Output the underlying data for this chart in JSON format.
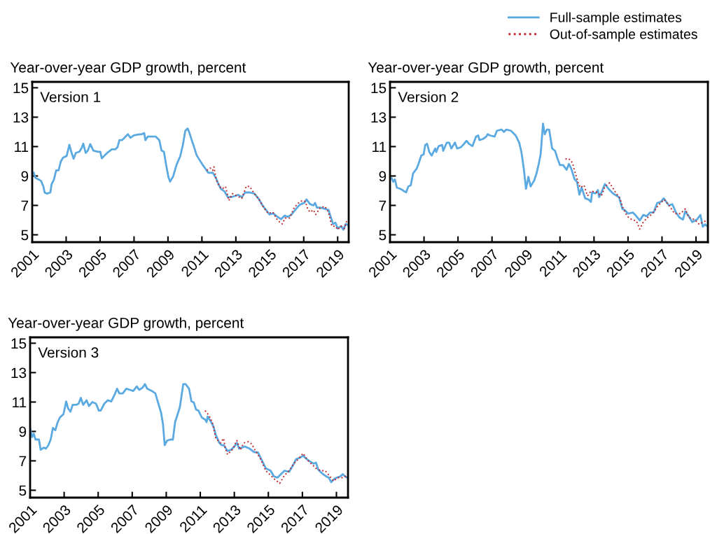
{
  "chart_data": [
    {
      "type": "line",
      "title": "Version 1",
      "ylabel": "Year-over-year GDP growth, percent",
      "xlim": [
        2001,
        2019.65
      ],
      "ylim": [
        4.5,
        15.4
      ],
      "xticks": [
        2001,
        2003,
        2005,
        2007,
        2009,
        2011,
        2013,
        2015,
        2017,
        2019
      ],
      "yticks": [
        5,
        7,
        9,
        11,
        13,
        15
      ],
      "legend": "top right",
      "grid": false,
      "series": [
        {
          "name": "Full-sample estimates",
          "color": "#5aa9e0",
          "line_style": "solid",
          "x": [
            2001.09,
            2001.19,
            2001.52,
            2001.66,
            2001.73,
            2001.87,
            2002.07,
            2002.14,
            2002.28,
            2002.41,
            2002.55,
            2002.69,
            2002.82,
            2003.03,
            2003.19,
            2003.3,
            2003.44,
            2003.57,
            2003.78,
            2003.91,
            2004.01,
            2004.15,
            2004.28,
            2004.42,
            2004.6,
            2004.87,
            2005.01,
            2005.1,
            2005.28,
            2005.42,
            2005.69,
            2005.9,
            2006.03,
            2006.14,
            2006.3,
            2006.44,
            2006.64,
            2006.79,
            2006.99,
            2007.33,
            2007.46,
            2007.6,
            2007.67,
            2007.81,
            2008.08,
            2008.28,
            2008.49,
            2008.62,
            2008.76,
            2008.9,
            2009.03,
            2009.13,
            2009.31,
            2009.51,
            2009.72,
            2009.88,
            2010.02,
            2010.16,
            2010.27,
            2010.4,
            2010.54,
            2010.69,
            2010.82,
            2011.03,
            2011.23,
            2011.37,
            2011.64,
            2011.84,
            2011.98,
            2012.12,
            2012.32,
            2012.53,
            2012.73,
            2012.94,
            2013.14,
            2013.35,
            2013.55,
            2013.82,
            2014.09,
            2014.37,
            2014.57,
            2014.78,
            2014.98,
            2015.19,
            2015.46,
            2015.66,
            2015.87,
            2016.07,
            2016.28,
            2016.55,
            2016.76,
            2017.03,
            2017.16,
            2017.37,
            2017.57,
            2017.67,
            2017.78,
            2017.98,
            2018.25,
            2018.46,
            2018.59,
            2018.73,
            2018.87,
            2019.0,
            2019.2,
            2019.34,
            2019.48,
            2019.62
          ],
          "values": [
            9.22,
            8.88,
            8.67,
            8.28,
            7.88,
            7.8,
            7.88,
            8.43,
            8.75,
            9.38,
            9.38,
            10.0,
            10.25,
            10.36,
            11.12,
            10.65,
            10.17,
            10.57,
            10.65,
            10.89,
            11.2,
            10.57,
            10.73,
            11.17,
            10.73,
            10.65,
            10.65,
            10.2,
            10.41,
            10.57,
            10.81,
            10.81,
            10.97,
            11.44,
            11.44,
            11.6,
            11.84,
            11.6,
            11.76,
            11.84,
            11.84,
            11.92,
            11.44,
            11.68,
            11.68,
            11.68,
            11.44,
            10.73,
            10.65,
            9.7,
            8.91,
            8.62,
            8.99,
            9.78,
            10.33,
            11.12,
            12.07,
            12.23,
            11.92,
            11.44,
            10.97,
            10.41,
            10.17,
            9.78,
            9.46,
            9.22,
            9.22,
            8.83,
            8.43,
            8.12,
            7.96,
            7.56,
            7.56,
            7.64,
            7.72,
            7.56,
            7.88,
            7.88,
            7.8,
            7.41,
            7.0,
            6.69,
            6.38,
            6.46,
            6.22,
            6.06,
            6.3,
            6.22,
            6.38,
            6.77,
            7.04,
            7.17,
            7.41,
            7.09,
            7.0,
            7.17,
            6.85,
            6.85,
            6.77,
            6.69,
            6.22,
            5.74,
            5.82,
            5.43,
            5.59,
            5.35,
            5.74,
            5.66
          ]
        },
        {
          "name": "Out-of-sample estimates",
          "color": "#c0272d",
          "line_style": "dotted",
          "x": [
            2011.29,
            2011.5,
            2011.64,
            2011.71,
            2011.84,
            2012.05,
            2012.19,
            2012.39,
            2012.59,
            2012.8,
            2013.07,
            2013.35,
            2013.62,
            2013.82,
            2014.09,
            2014.37,
            2014.64,
            2014.91,
            2015.19,
            2015.46,
            2015.73,
            2015.9,
            2016.17,
            2016.44,
            2016.76,
            2016.96,
            2017.1,
            2017.23,
            2017.37,
            2017.57,
            2017.71,
            2017.98,
            2018.25,
            2018.46,
            2018.66,
            2018.87,
            2019.0,
            2019.2,
            2019.4,
            2019.54
          ],
          "values": [
            9.38,
            9.54,
            9.38,
            9.62,
            8.75,
            8.28,
            8.12,
            8.28,
            7.33,
            7.8,
            7.64,
            7.48,
            8.31,
            8.28,
            7.8,
            7.41,
            6.85,
            6.46,
            6.54,
            5.98,
            5.74,
            6.14,
            6.14,
            6.85,
            7.25,
            7.33,
            7.25,
            6.77,
            6.54,
            6.69,
            6.38,
            6.85,
            6.93,
            6.54,
            5.59,
            5.59,
            5.35,
            5.59,
            5.43,
            5.98
          ]
        }
      ]
    },
    {
      "type": "line",
      "title": "Version 2",
      "ylabel": "Year-over-year GDP growth, percent",
      "xlim": [
        2001,
        2019.7
      ],
      "ylim": [
        4.5,
        15.4
      ],
      "xticks": [
        2001,
        2003,
        2005,
        2007,
        2009,
        2011,
        2013,
        2015,
        2017,
        2019
      ],
      "yticks": [
        5,
        7,
        9,
        11,
        13,
        15
      ],
      "grid": false,
      "series": [
        {
          "color": "#5aa9e0",
          "line_style": "solid",
          "x": [
            2001.1,
            2001.19,
            2001.29,
            2001.4,
            2001.6,
            2001.74,
            2001.81,
            2001.95,
            2002.08,
            2002.22,
            2002.36,
            2002.57,
            2002.7,
            2002.84,
            2002.98,
            2003.07,
            2003.18,
            2003.31,
            2003.45,
            2003.66,
            2003.72,
            2003.86,
            2004.07,
            2004.13,
            2004.34,
            2004.48,
            2004.61,
            2004.82,
            2004.95,
            2005.16,
            2005.3,
            2005.5,
            2005.64,
            2005.85,
            2006.06,
            2006.19,
            2006.26,
            2006.47,
            2006.67,
            2006.74,
            2006.88,
            2007.15,
            2007.29,
            2007.56,
            2007.7,
            2007.84,
            2008.11,
            2008.39,
            2008.6,
            2008.73,
            2008.87,
            2009.0,
            2009.14,
            2009.27,
            2009.48,
            2009.62,
            2009.75,
            2009.86,
            2010.0,
            2010.1,
            2010.23,
            2010.36,
            2010.54,
            2010.71,
            2010.84,
            2011.0,
            2011.18,
            2011.39,
            2011.52,
            2011.66,
            2011.86,
            2012.0,
            2012.14,
            2012.27,
            2012.48,
            2012.68,
            2012.82,
            2012.89,
            2013.09,
            2013.23,
            2013.3,
            2013.44,
            2013.64,
            2013.85,
            2014.12,
            2014.47,
            2014.67,
            2014.81,
            2015.01,
            2015.28,
            2015.49,
            2015.69,
            2015.9,
            2016.1,
            2016.31,
            2016.51,
            2016.72,
            2016.93,
            2017.1,
            2017.41,
            2017.61,
            2017.82,
            2018.02,
            2018.23,
            2018.37,
            2018.57,
            2018.78,
            2019.05,
            2019.26,
            2019.4,
            2019.53,
            2019.7
          ],
          "values": [
            8.85,
            8.61,
            8.77,
            8.21,
            8.13,
            8.05,
            7.97,
            7.89,
            8.29,
            8.37,
            9.18,
            9.5,
            9.9,
            10.39,
            10.47,
            11.11,
            11.19,
            10.63,
            10.39,
            10.87,
            10.63,
            11.03,
            11.11,
            10.71,
            11.27,
            11.27,
            10.87,
            11.27,
            10.87,
            10.95,
            11.11,
            11.39,
            11.19,
            11.03,
            11.68,
            11.76,
            11.44,
            11.52,
            11.68,
            11.84,
            11.76,
            11.68,
            12.08,
            12.16,
            12.0,
            12.16,
            12.08,
            11.76,
            11.27,
            10.63,
            9.5,
            8.13,
            8.94,
            8.29,
            8.69,
            9.18,
            9.82,
            10.47,
            12.56,
            11.84,
            12.16,
            12.16,
            10.87,
            10.71,
            10.23,
            9.74,
            9.74,
            9.42,
            9.82,
            9.5,
            8.77,
            8.61,
            7.73,
            8.21,
            7.48,
            7.4,
            7.24,
            7.89,
            7.81,
            8.05,
            7.56,
            7.89,
            8.45,
            8.13,
            7.81,
            7.56,
            6.76,
            6.68,
            6.44,
            6.52,
            6.27,
            5.98,
            6.35,
            6.27,
            6.52,
            6.52,
            7.16,
            7.24,
            7.48,
            7.0,
            7.08,
            6.52,
            6.19,
            6.03,
            6.6,
            6.27,
            5.87,
            6.03,
            6.35,
            5.55,
            5.71,
            5.55
          ]
        },
        {
          "color": "#c0272d",
          "line_style": "dotted",
          "x": [
            2011.32,
            2011.52,
            2011.73,
            2011.86,
            2012.07,
            2012.2,
            2012.41,
            2012.62,
            2012.82,
            2013.16,
            2013.44,
            2013.64,
            2013.92,
            2014.26,
            2014.53,
            2014.67,
            2014.95,
            2015.22,
            2015.49,
            2015.69,
            2015.9,
            2016.17,
            2016.44,
            2016.78,
            2017.13,
            2017.41,
            2017.75,
            2018.09,
            2018.37,
            2018.57,
            2018.92,
            2019.19,
            2019.4,
            2019.6
          ],
          "values": [
            10.15,
            10.18,
            9.9,
            9.34,
            8.53,
            8.21,
            8.37,
            7.65,
            7.97,
            7.89,
            7.65,
            8.29,
            8.53,
            7.89,
            7.48,
            6.92,
            6.27,
            6.03,
            5.95,
            5.39,
            5.87,
            6.19,
            6.44,
            7.0,
            7.4,
            7.0,
            6.44,
            6.44,
            6.76,
            6.19,
            6.03,
            5.71,
            5.87,
            5.95
          ]
        }
      ]
    },
    {
      "type": "line",
      "title": "Version 3",
      "ylabel": "Year-over-year GDP growth, percent",
      "xlim": [
        2001,
        2019.68
      ],
      "ylim": [
        4.5,
        15.4
      ],
      "xticks": [
        2001,
        2003,
        2005,
        2007,
        2009,
        2011,
        2013,
        2015,
        2017,
        2019
      ],
      "yticks": [
        5,
        7,
        9,
        11,
        13,
        15
      ],
      "grid": false,
      "series": [
        {
          "color": "#5aa9e0",
          "line_style": "solid",
          "x": [
            2001.02,
            2001.11,
            2001.21,
            2001.32,
            2001.52,
            2001.62,
            2001.8,
            2001.93,
            2002.07,
            2002.21,
            2002.34,
            2002.48,
            2002.62,
            2002.75,
            2002.96,
            2003.12,
            2003.23,
            2003.37,
            2003.5,
            2003.71,
            2003.85,
            2003.98,
            2004.12,
            2004.32,
            2004.46,
            2004.66,
            2004.87,
            2005.04,
            2005.15,
            2005.36,
            2005.56,
            2005.77,
            2005.97,
            2006.11,
            2006.24,
            2006.45,
            2006.65,
            2006.86,
            2007.06,
            2007.27,
            2007.41,
            2007.61,
            2007.75,
            2007.88,
            2008.16,
            2008.36,
            2008.5,
            2008.7,
            2008.81,
            2008.91,
            2009.05,
            2009.25,
            2009.39,
            2009.52,
            2009.8,
            2010.0,
            2010.14,
            2010.34,
            2010.48,
            2010.62,
            2010.75,
            2010.89,
            2011.09,
            2011.3,
            2011.37,
            2011.43,
            2011.64,
            2011.78,
            2011.91,
            2012.12,
            2012.26,
            2012.39,
            2012.6,
            2012.8,
            2013.01,
            2013.15,
            2013.28,
            2013.62,
            2013.9,
            2014.17,
            2014.38,
            2014.58,
            2014.85,
            2015.13,
            2015.33,
            2015.54,
            2015.74,
            2015.95,
            2016.22,
            2016.43,
            2016.63,
            2016.84,
            2017.04,
            2017.25,
            2017.45,
            2017.66,
            2017.8,
            2017.93,
            2018.21,
            2018.41,
            2018.55,
            2018.69,
            2018.89,
            2019.03,
            2019.23,
            2019.37,
            2019.51,
            2019.68
          ],
          "values": [
            9.16,
            8.61,
            8.85,
            8.45,
            8.45,
            7.75,
            7.9,
            7.83,
            8.06,
            8.45,
            9.24,
            9.08,
            9.63,
            9.95,
            10.18,
            11.04,
            10.57,
            10.34,
            10.81,
            10.81,
            10.89,
            11.28,
            10.81,
            11.12,
            10.73,
            11.0,
            10.89,
            10.42,
            10.42,
            10.89,
            11.12,
            11.04,
            11.51,
            11.91,
            11.59,
            11.59,
            11.91,
            11.83,
            11.75,
            12.06,
            11.83,
            11.98,
            12.22,
            11.91,
            11.75,
            11.59,
            11.04,
            10.26,
            9.47,
            8.06,
            8.38,
            8.45,
            8.45,
            9.63,
            10.65,
            12.22,
            12.22,
            11.91,
            11.04,
            10.97,
            10.49,
            10.42,
            9.95,
            9.79,
            9.63,
            10.02,
            9.63,
            9.32,
            8.77,
            8.22,
            8.06,
            8.06,
            7.67,
            7.75,
            7.98,
            8.22,
            7.83,
            7.98,
            7.83,
            7.59,
            7.59,
            7.12,
            6.49,
            6.33,
            5.94,
            5.86,
            6.1,
            6.33,
            6.26,
            6.65,
            7.12,
            7.2,
            7.35,
            7.12,
            6.96,
            6.81,
            6.88,
            6.41,
            6.1,
            5.94,
            5.86,
            5.55,
            5.78,
            5.86,
            5.94,
            6.1,
            5.94,
            5.83
          ]
        },
        {
          "color": "#c0272d",
          "line_style": "dotted",
          "x": [
            2011.28,
            2011.51,
            2011.72,
            2011.91,
            2012.19,
            2012.37,
            2012.46,
            2012.6,
            2012.87,
            2013.15,
            2013.35,
            2013.56,
            2013.83,
            2014.03,
            2014.24,
            2014.51,
            2014.85,
            2015.13,
            2015.4,
            2015.67,
            2015.95,
            2016.22,
            2016.49,
            2016.76,
            2017.04,
            2017.31,
            2017.52,
            2017.8,
            2018.07,
            2018.34,
            2018.62,
            2018.82,
            2019.1,
            2019.37,
            2019.65
          ],
          "values": [
            10.42,
            10.1,
            9.55,
            8.53,
            8.22,
            8.53,
            7.9,
            7.43,
            7.75,
            8.38,
            7.75,
            8.22,
            8.3,
            8.14,
            7.67,
            7.2,
            6.33,
            6.02,
            5.71,
            5.47,
            6.02,
            6.33,
            6.81,
            7.12,
            7.51,
            7.04,
            6.81,
            6.49,
            6.33,
            6.33,
            5.94,
            5.63,
            5.86,
            5.86,
            6.02
          ]
        }
      ]
    }
  ]
}
